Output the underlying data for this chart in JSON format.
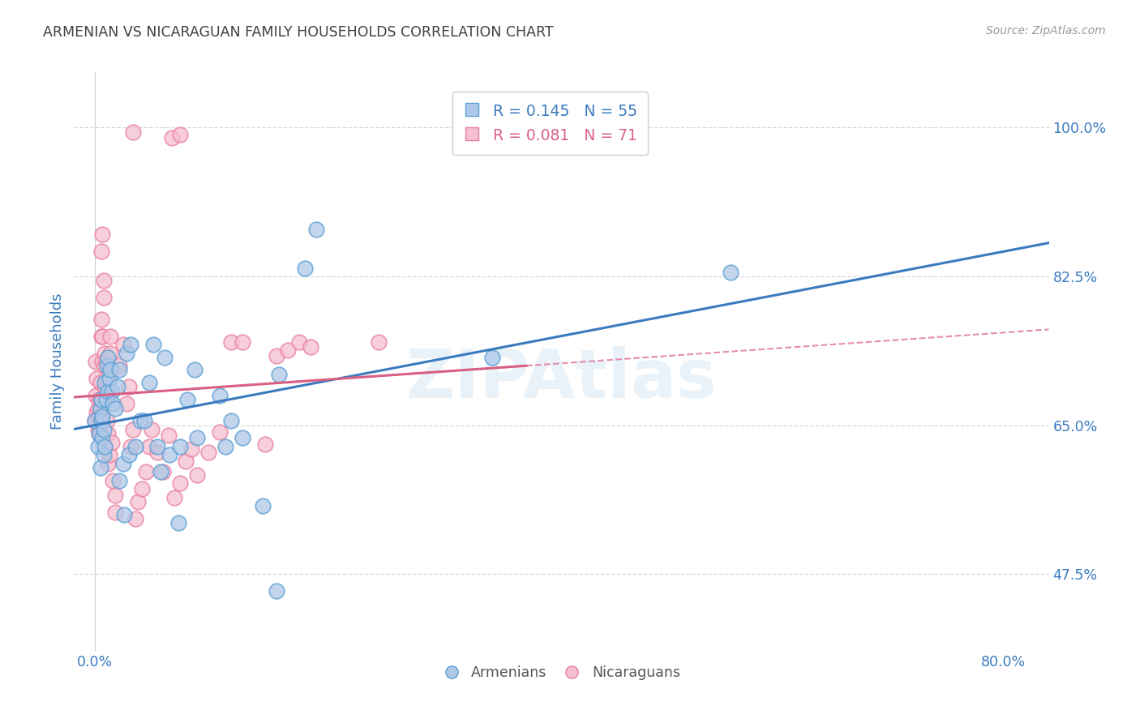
{
  "title": "ARMENIAN VS NICARAGUAN FAMILY HOUSEHOLDS CORRELATION CHART",
  "source": "Source: ZipAtlas.com",
  "ylabel": "Family Households",
  "y_tick_values": [
    0.475,
    0.65,
    0.825,
    1.0
  ],
  "y_tick_labels": [
    "47.5%",
    "65.0%",
    "82.5%",
    "100.0%"
  ],
  "x_tick_positions": [
    0.0,
    0.8
  ],
  "x_tick_labels": [
    "0.0%",
    "80.0%"
  ],
  "x_min": -0.018,
  "x_max": 0.84,
  "y_min": 0.385,
  "y_max": 1.065,
  "watermark": "ZIPAtlas",
  "armenian_face": "#aec8e8",
  "armenian_edge": "#5a9fd4",
  "nicaraguan_face": "#f5c0cf",
  "nicaraguan_edge": "#e87fa0",
  "trend_armenian_color": "#3a7abf",
  "trend_nicaraguan_color": "#d95f82",
  "trend_arm_x_start": -0.018,
  "trend_arm_x_end": 0.84,
  "trend_nic_x_start": -0.018,
  "trend_nic_x_end": 0.38,
  "background_color": "#ffffff",
  "grid_color": "#d8d8d8",
  "title_color": "#404040",
  "tick_label_color": "#3a7abf",
  "legend_r_arm": "R = 0.145",
  "legend_n_arm": "N = 55",
  "legend_r_nic": "R = 0.081",
  "legend_n_nic": "N = 71",
  "armenians": [
    [
      0.0,
      0.655
    ],
    [
      0.003,
      0.625
    ],
    [
      0.004,
      0.64
    ],
    [
      0.005,
      0.6
    ],
    [
      0.005,
      0.67
    ],
    [
      0.006,
      0.655
    ],
    [
      0.006,
      0.68
    ],
    [
      0.007,
      0.635
    ],
    [
      0.007,
      0.66
    ],
    [
      0.008,
      0.615
    ],
    [
      0.008,
      0.645
    ],
    [
      0.009,
      0.625
    ],
    [
      0.009,
      0.7
    ],
    [
      0.01,
      0.68
    ],
    [
      0.011,
      0.72
    ],
    [
      0.012,
      0.69
    ],
    [
      0.012,
      0.73
    ],
    [
      0.013,
      0.705
    ],
    [
      0.014,
      0.715
    ],
    [
      0.015,
      0.69
    ],
    [
      0.016,
      0.675
    ],
    [
      0.018,
      0.67
    ],
    [
      0.02,
      0.695
    ],
    [
      0.022,
      0.585
    ],
    [
      0.022,
      0.715
    ],
    [
      0.025,
      0.605
    ],
    [
      0.026,
      0.545
    ],
    [
      0.028,
      0.735
    ],
    [
      0.03,
      0.615
    ],
    [
      0.032,
      0.745
    ],
    [
      0.036,
      0.625
    ],
    [
      0.04,
      0.655
    ],
    [
      0.044,
      0.655
    ],
    [
      0.048,
      0.7
    ],
    [
      0.052,
      0.745
    ],
    [
      0.055,
      0.625
    ],
    [
      0.058,
      0.595
    ],
    [
      0.062,
      0.73
    ],
    [
      0.066,
      0.615
    ],
    [
      0.074,
      0.535
    ],
    [
      0.075,
      0.625
    ],
    [
      0.082,
      0.68
    ],
    [
      0.088,
      0.715
    ],
    [
      0.09,
      0.635
    ],
    [
      0.11,
      0.685
    ],
    [
      0.115,
      0.625
    ],
    [
      0.12,
      0.655
    ],
    [
      0.13,
      0.635
    ],
    [
      0.148,
      0.555
    ],
    [
      0.16,
      0.455
    ],
    [
      0.162,
      0.71
    ],
    [
      0.185,
      0.835
    ],
    [
      0.195,
      0.88
    ],
    [
      0.35,
      0.73
    ],
    [
      0.56,
      0.83
    ]
  ],
  "nicaraguans": [
    [
      0.0,
      0.655
    ],
    [
      0.001,
      0.685
    ],
    [
      0.001,
      0.725
    ],
    [
      0.002,
      0.665
    ],
    [
      0.002,
      0.705
    ],
    [
      0.003,
      0.645
    ],
    [
      0.003,
      0.67
    ],
    [
      0.004,
      0.64
    ],
    [
      0.004,
      0.66
    ],
    [
      0.004,
      0.68
    ],
    [
      0.005,
      0.64
    ],
    [
      0.005,
      0.66
    ],
    [
      0.005,
      0.68
    ],
    [
      0.005,
      0.7
    ],
    [
      0.006,
      0.755
    ],
    [
      0.006,
      0.775
    ],
    [
      0.006,
      0.855
    ],
    [
      0.007,
      0.875
    ],
    [
      0.007,
      0.725
    ],
    [
      0.007,
      0.755
    ],
    [
      0.008,
      0.8
    ],
    [
      0.008,
      0.82
    ],
    [
      0.009,
      0.695
    ],
    [
      0.009,
      0.72
    ],
    [
      0.009,
      0.735
    ],
    [
      0.01,
      0.705
    ],
    [
      0.01,
      0.725
    ],
    [
      0.011,
      0.655
    ],
    [
      0.011,
      0.685
    ],
    [
      0.012,
      0.605
    ],
    [
      0.012,
      0.64
    ],
    [
      0.013,
      0.615
    ],
    [
      0.014,
      0.735
    ],
    [
      0.014,
      0.755
    ],
    [
      0.015,
      0.63
    ],
    [
      0.016,
      0.585
    ],
    [
      0.018,
      0.548
    ],
    [
      0.018,
      0.568
    ],
    [
      0.022,
      0.72
    ],
    [
      0.025,
      0.745
    ],
    [
      0.028,
      0.675
    ],
    [
      0.03,
      0.695
    ],
    [
      0.032,
      0.625
    ],
    [
      0.034,
      0.645
    ],
    [
      0.036,
      0.54
    ],
    [
      0.038,
      0.56
    ],
    [
      0.042,
      0.575
    ],
    [
      0.045,
      0.595
    ],
    [
      0.048,
      0.625
    ],
    [
      0.05,
      0.645
    ],
    [
      0.055,
      0.618
    ],
    [
      0.06,
      0.595
    ],
    [
      0.065,
      0.638
    ],
    [
      0.07,
      0.565
    ],
    [
      0.075,
      0.582
    ],
    [
      0.08,
      0.608
    ],
    [
      0.085,
      0.622
    ],
    [
      0.09,
      0.592
    ],
    [
      0.1,
      0.618
    ],
    [
      0.11,
      0.642
    ],
    [
      0.12,
      0.748
    ],
    [
      0.13,
      0.748
    ],
    [
      0.15,
      0.628
    ],
    [
      0.16,
      0.732
    ],
    [
      0.17,
      0.738
    ],
    [
      0.18,
      0.748
    ],
    [
      0.19,
      0.742
    ],
    [
      0.25,
      0.748
    ],
    [
      0.034,
      0.995
    ],
    [
      0.068,
      0.988
    ],
    [
      0.075,
      0.992
    ]
  ]
}
